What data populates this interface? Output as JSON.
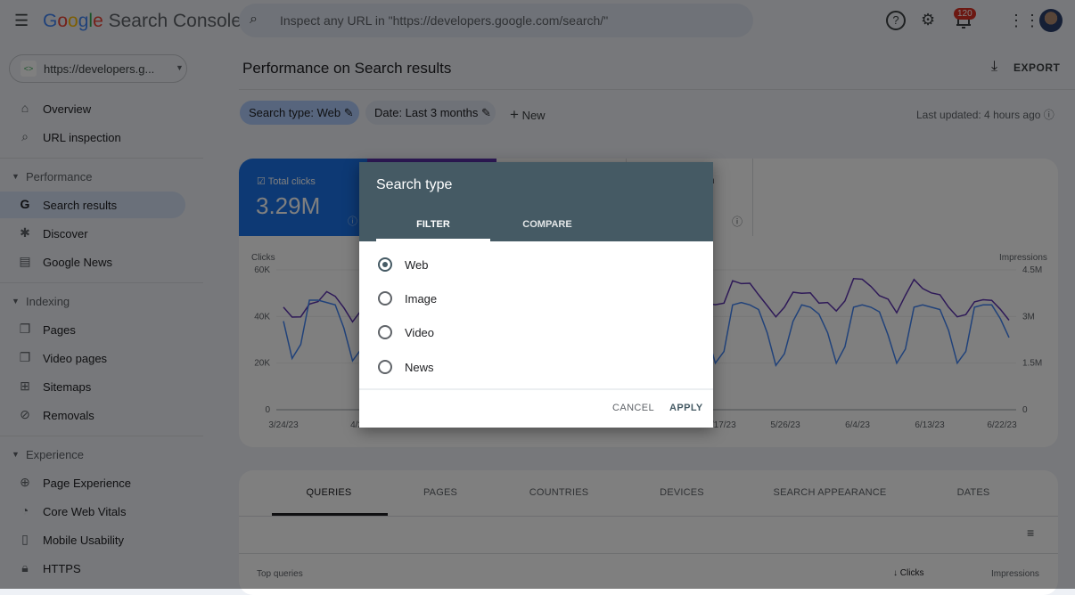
{
  "app": {
    "logo_google": "Google",
    "logo_product": "Search Console"
  },
  "search": {
    "placeholder": "Inspect any URL in \"https://developers.google.com/search/\""
  },
  "header": {
    "notifications_count": "120",
    "icons": [
      "menu-icon",
      "search-icon",
      "help-icon",
      "manage-users-icon",
      "bell-icon",
      "apps-icon",
      "avatar"
    ]
  },
  "property": {
    "label": "https://developers.g..."
  },
  "sidebar": {
    "items": [
      {
        "label": "Overview",
        "icon": "home-icon"
      },
      {
        "label": "URL inspection",
        "icon": "search-icon"
      }
    ],
    "sections": [
      {
        "title": "Performance",
        "items": [
          {
            "label": "Search results",
            "icon": "google-g-icon",
            "selected": true
          },
          {
            "label": "Discover",
            "icon": "asterisk-icon"
          },
          {
            "label": "Google News",
            "icon": "news-icon"
          }
        ]
      },
      {
        "title": "Indexing",
        "items": [
          {
            "label": "Pages",
            "icon": "pages-icon"
          },
          {
            "label": "Video pages",
            "icon": "video-pages-icon"
          },
          {
            "label": "Sitemaps",
            "icon": "sitemap-icon"
          },
          {
            "label": "Removals",
            "icon": "removals-icon"
          }
        ]
      },
      {
        "title": "Experience",
        "items": [
          {
            "label": "Page Experience",
            "icon": "plus-circle-icon"
          },
          {
            "label": "Core Web Vitals",
            "icon": "gauge-icon"
          },
          {
            "label": "Mobile Usability",
            "icon": "phone-icon"
          },
          {
            "label": "HTTPS",
            "icon": "lock-icon"
          }
        ]
      }
    ]
  },
  "main": {
    "title": "Performance on Search results",
    "export_label": "EXPORT",
    "filters": {
      "search_type": "Search type: Web",
      "date": "Date: Last 3 months",
      "new": "New"
    },
    "last_updated": "Last updated: 4 hours ago",
    "metrics": {
      "total_clicks_label": "Total clicks",
      "total_clicks_value": "3.29M",
      "partial_label": "ion"
    },
    "table": {
      "tabs": [
        "QUERIES",
        "PAGES",
        "COUNTRIES",
        "DEVICES",
        "SEARCH APPEARANCE",
        "DATES"
      ],
      "active_tab": "QUERIES",
      "col_top": "Top queries",
      "col_clicks": "Clicks",
      "col_impressions": "Impressions"
    }
  },
  "chart_data": {
    "type": "line",
    "left_axis_label": "Clicks",
    "right_axis_label": "Impressions",
    "left_ticks": [
      "0",
      "20K",
      "40K",
      "60K"
    ],
    "right_ticks": [
      "0",
      "1.5M",
      "3M",
      "4.5M"
    ],
    "ylim_left": [
      0,
      60000
    ],
    "ylim_right": [
      0,
      4500000
    ],
    "x_ticks": [
      "3/24/23",
      "4/2/23",
      "5/17/23",
      "5/26/23",
      "6/4/23",
      "6/13/23",
      "6/22/23"
    ],
    "x_range": [
      "3/24/23",
      "6/23/23"
    ],
    "grid": true,
    "colors": {
      "clicks": "#4285f4",
      "impressions": "#5e35b1"
    },
    "series": [
      {
        "name": "Clicks",
        "values": [
          38000,
          22000,
          28000,
          47000,
          47000,
          46000,
          45000,
          35000,
          21000,
          26000,
          46000,
          47000,
          46000,
          44000,
          34000,
          20000,
          26000,
          45000,
          46000,
          45000,
          44000,
          34000,
          20000,
          26000,
          45000,
          46000,
          45000,
          44000,
          34000,
          20000,
          26000,
          45000,
          46000,
          45000,
          44000,
          34000,
          20000,
          26000,
          45000,
          46000,
          45000,
          44000,
          34000,
          20000,
          26000,
          45000,
          46000,
          45000,
          44000,
          33000,
          20000,
          25000,
          45000,
          46000,
          45000,
          43000,
          33000,
          19000,
          24000,
          38000,
          45000,
          44000,
          41000,
          33000,
          20000,
          27000,
          44000,
          45000,
          44000,
          42000,
          32000,
          20000,
          26000,
          44000,
          45000,
          44000,
          43000,
          34000,
          20000,
          25000,
          44000,
          45000,
          45000,
          39000,
          31000
        ]
      },
      {
        "name": "Impressions",
        "values": [
          3300000,
          2980000,
          2990000,
          3400000,
          3480000,
          3800000,
          3650000,
          3280000,
          2830000,
          3200000,
          3600000,
          3750000,
          3700000,
          3500000,
          3300000,
          3000000,
          3050000,
          3500000,
          3700000,
          3750000,
          3600000,
          3350000,
          3000000,
          3050000,
          3500000,
          3700000,
          3750000,
          3600000,
          3350000,
          3000000,
          3050000,
          3500000,
          3700000,
          3750000,
          3600000,
          3350000,
          3000000,
          3050000,
          3500000,
          3700000,
          3750000,
          3600000,
          3350000,
          3000000,
          3050000,
          3500000,
          3700000,
          3750000,
          3700000,
          3420000,
          3380000,
          3430000,
          4150000,
          4060000,
          4070000,
          3700000,
          3350000,
          2990000,
          3300000,
          3780000,
          3750000,
          3760000,
          3430000,
          3450000,
          3180000,
          3500000,
          4220000,
          4200000,
          3970000,
          3670000,
          3560000,
          3120000,
          3680000,
          4190000,
          3900000,
          3760000,
          3700000,
          3300000,
          2990000,
          3060000,
          3470000,
          3540000,
          3520000,
          3230000,
          2880000
        ]
      }
    ]
  }
}
